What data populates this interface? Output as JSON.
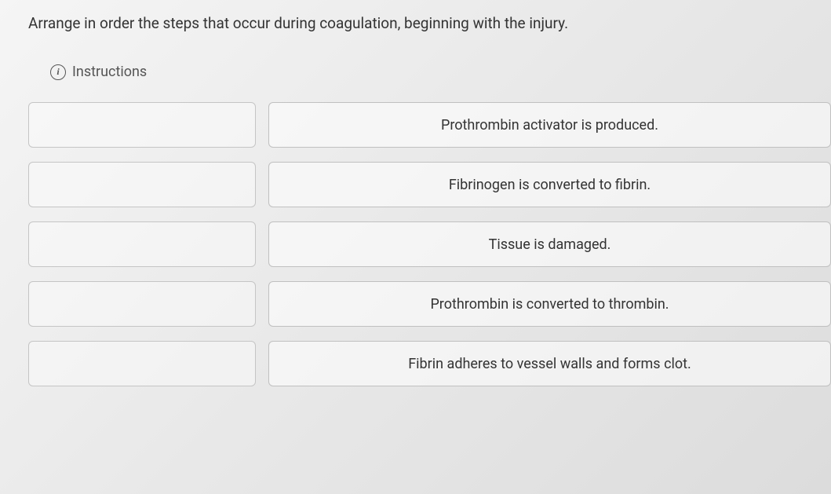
{
  "question": "Arrange in order the steps that occur during coagulation, beginning with the injury.",
  "instructions_label": "Instructions",
  "items": [
    {
      "text": "Prothrombin activator is produced."
    },
    {
      "text": "Fibrinogen is converted to fibrin."
    },
    {
      "text": "Tissue is damaged."
    },
    {
      "text": "Prothrombin is converted to thrombin."
    },
    {
      "text": "Fibrin adheres to vessel walls and forms clot."
    }
  ]
}
